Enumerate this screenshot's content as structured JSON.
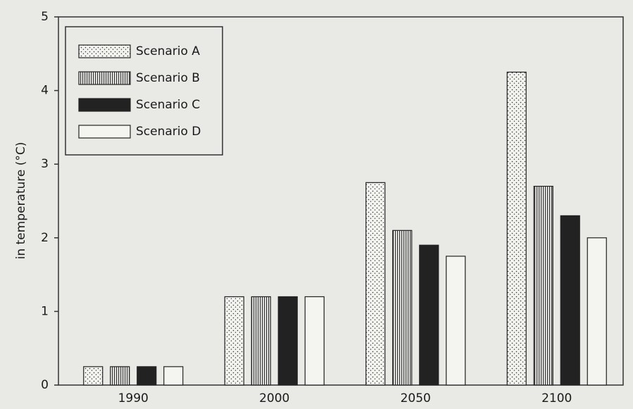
{
  "chart_data": {
    "type": "bar",
    "y_label": "in temperature (°C)",
    "categories": [
      "1990",
      "2000",
      "2050",
      "2100"
    ],
    "series": [
      {
        "name": "Scenario A",
        "color": "#222222",
        "pattern": "dots",
        "values": [
          0.25,
          1.2,
          2.75,
          4.25
        ]
      },
      {
        "name": "Scenario B",
        "color": "#222222",
        "pattern": "vlines",
        "values": [
          0.25,
          1.2,
          2.1,
          2.7
        ]
      },
      {
        "name": "Scenario C",
        "color": "#222222",
        "pattern": "solid",
        "values": [
          0.25,
          1.2,
          1.9,
          2.3
        ]
      },
      {
        "name": "Scenario D",
        "color": "#222222",
        "pattern": "empty",
        "values": [
          0.25,
          1.2,
          1.75,
          2.0
        ]
      }
    ],
    "ylim": [
      0,
      5
    ],
    "yticks": [
      0,
      1,
      2,
      3,
      4,
      5
    ],
    "grid": false,
    "legend": "upper left"
  }
}
